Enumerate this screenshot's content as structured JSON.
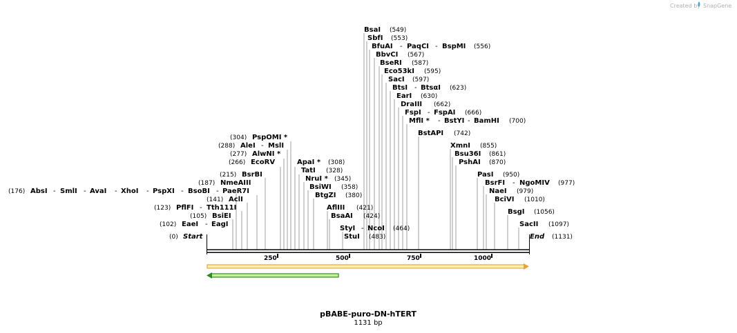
{
  "credit": {
    "prefix": "Created by",
    "brand": "SnapGene",
    "accent": "#4aa3df"
  },
  "map": {
    "title": "pBABE-puro-DN-hTERT",
    "length_label": "1131 bp",
    "start_label": "Start",
    "start_pos": "(0)",
    "end_label": "End",
    "end_pos": "(1131)"
  },
  "ticks": [
    "250",
    "500",
    "750",
    "1000"
  ],
  "features": {
    "orange": {
      "color": "#e8a33c",
      "fill": "#fff2b3",
      "direction": "forward"
    },
    "green": {
      "color": "#2e8b1f",
      "fill": "#c8f0a0",
      "direction": "reverse"
    }
  },
  "sites": {
    "absi": {
      "names": [
        "AbsI",
        "SmlI",
        "AvaI",
        "XhoI",
        "PspXI",
        "BsoBI",
        "PaeR7I"
      ],
      "pos": "(176)"
    },
    "eaei": {
      "names": [
        "EaeI",
        "EagI"
      ],
      "pos": "(102)"
    },
    "bsiei": {
      "names": [
        "BsiEI"
      ],
      "pos": "(105)"
    },
    "pflfi": {
      "names": [
        "PflFI",
        "Tth111I"
      ],
      "pos": "(123)"
    },
    "acli": {
      "names": [
        "AclI"
      ],
      "pos": "(141)"
    },
    "nmeaiii": {
      "names": [
        "NmeAIII"
      ],
      "pos": "(187)"
    },
    "bsrbi": {
      "names": [
        "BsrBI"
      ],
      "pos": "(215)"
    },
    "ecorv": {
      "names": [
        "EcoRV"
      ],
      "pos": "(266)"
    },
    "alwni": {
      "names": [
        "AlwNI *"
      ],
      "pos": "(277)"
    },
    "alei": {
      "names": [
        "AleI",
        "MslI"
      ],
      "pos": "(288)"
    },
    "pspomi": {
      "names": [
        "PspOMI *"
      ],
      "pos": "(304)"
    },
    "apai": {
      "names": [
        "ApaI *"
      ],
      "pos": "(308)"
    },
    "tati": {
      "names": [
        "TatI"
      ],
      "pos": "(328)"
    },
    "nrui": {
      "names": [
        "NruI *"
      ],
      "pos": "(345)"
    },
    "bsiwi": {
      "names": [
        "BsiWI"
      ],
      "pos": "(358)"
    },
    "btgzi": {
      "names": [
        "BtgZI"
      ],
      "pos": "(380)"
    },
    "afliii": {
      "names": [
        "AflIII"
      ],
      "pos": "(421)"
    },
    "bsaai": {
      "names": [
        "BsaAI"
      ],
      "pos": "(424)"
    },
    "styi": {
      "names": [
        "StyI",
        "NcoI"
      ],
      "pos": "(464)"
    },
    "stui": {
      "names": [
        "StuI"
      ],
      "pos": "(483)"
    },
    "bsai": {
      "names": [
        "BsaI"
      ],
      "pos": "(549)"
    },
    "sbfi": {
      "names": [
        "SbfI"
      ],
      "pos": "(553)"
    },
    "bfuai": {
      "names": [
        "BfuAI",
        "PaqCI",
        "BspMI"
      ],
      "pos": "(556)"
    },
    "bbvci": {
      "names": [
        "BbvCI"
      ],
      "pos": "(567)"
    },
    "bseri": {
      "names": [
        "BseRI"
      ],
      "pos": "(587)"
    },
    "eco53ki": {
      "names": [
        "Eco53kI"
      ],
      "pos": "(595)"
    },
    "saci": {
      "names": [
        "SacI"
      ],
      "pos": "(597)"
    },
    "btsi": {
      "names": [
        "BtsI",
        "BtsαI"
      ],
      "pos": "(623)"
    },
    "eari": {
      "names": [
        "EarI"
      ],
      "pos": "(630)"
    },
    "draiii": {
      "names": [
        "DraIII"
      ],
      "pos": "(662)"
    },
    "fspi": {
      "names": [
        "FspI",
        "FspAI"
      ],
      "pos": "(666)"
    },
    "mfli": {
      "names": [
        "MflI *",
        "BstYI",
        "BamHI"
      ],
      "pos": "(700)"
    },
    "bstapi": {
      "names": [
        "BstAPI"
      ],
      "pos": "(742)"
    },
    "xmni": {
      "names": [
        "XmnI"
      ],
      "pos": "(855)"
    },
    "bsu36i": {
      "names": [
        "Bsu36I"
      ],
      "pos": "(861)"
    },
    "pshai": {
      "names": [
        "PshAI"
      ],
      "pos": "(870)"
    },
    "pasi": {
      "names": [
        "PasI"
      ],
      "pos": "(950)"
    },
    "bsrfi": {
      "names": [
        "BsrFI",
        "NgoMIV"
      ],
      "pos": "(977)"
    },
    "naei": {
      "names": [
        "NaeI"
      ],
      "pos": "(979)"
    },
    "bcivi": {
      "names": [
        "BciVI"
      ],
      "pos": "(1010)"
    },
    "bsgi": {
      "names": [
        "BsgI"
      ],
      "pos": "(1056)"
    },
    "sacii": {
      "names": [
        "SacII"
      ],
      "pos": "(1097)"
    }
  }
}
